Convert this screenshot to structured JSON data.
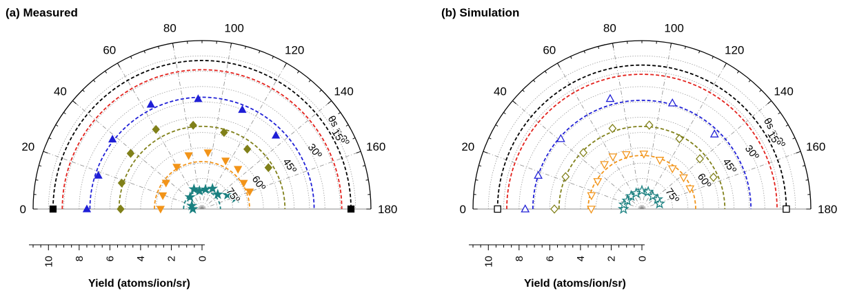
{
  "colors": {
    "black": "#000000",
    "red": "#e3211c",
    "blue": "#1f1fd6",
    "olive": "#808019",
    "orange": "#f29419",
    "teal": "#1a8080",
    "grid": "#8a8a8a",
    "gridDotted": "#9a9a9a"
  },
  "chart_data": [
    {
      "type": "polar-scatter",
      "panel_label": "(a) Measured",
      "marker_fill": "filled",
      "angle_ticks": [
        0,
        20,
        40,
        60,
        80,
        100,
        120,
        140,
        160,
        180
      ],
      "radial_axis": {
        "label": "Yield (atoms/ion/sr)",
        "ticks": [
          10,
          8,
          6,
          4,
          2,
          0
        ],
        "rlim": [
          0,
          11
        ]
      },
      "angle_labels": [
        "θs = 0º",
        "15º",
        "30º",
        "45º",
        "60º",
        "75º"
      ],
      "series": [
        {
          "name": "θs = 0º",
          "color": "black",
          "marker": "square",
          "points": [
            [
              0,
              9.7
            ],
            [
              180,
              9.7
            ]
          ],
          "curve_r": 9.7
        },
        {
          "name": "15º",
          "color": "red",
          "marker": "circle",
          "points": [
            [
              0,
              9.0
            ],
            [
              53,
              9.2
            ],
            [
              131,
              9.0
            ],
            [
              180,
              9.0
            ]
          ],
          "curve_r": 9.1
        },
        {
          "name": "30º",
          "color": "blue",
          "marker": "triangle",
          "points": [
            [
              0,
              7.5
            ],
            [
              18,
              7.1
            ],
            [
              38,
              7.4
            ],
            [
              64,
              7.6
            ],
            [
              88,
              7.2
            ],
            [
              112,
              7.0
            ],
            [
              135,
              6.8
            ]
          ],
          "curve_r": 7.3
        },
        {
          "name": "45º",
          "color": "olive",
          "marker": "diamond",
          "points": [
            [
              0,
              5.3
            ],
            [
              18,
              5.5
            ],
            [
              38,
              5.9
            ],
            [
              60,
              6.0
            ],
            [
              84,
              5.5
            ],
            [
              106,
              5.2
            ],
            [
              127,
              4.9
            ],
            [
              148,
              5.1
            ]
          ],
          "curve_r": 5.4
        },
        {
          "name": "60º",
          "color": "orange",
          "marker": "triangle-down",
          "points": [
            [
              0,
              2.7
            ],
            [
              19,
              2.7
            ],
            [
              36,
              2.9
            ],
            [
              59,
              3.2
            ],
            [
              76,
              3.6
            ],
            [
              96,
              3.7
            ],
            [
              116,
              3.5
            ],
            [
              132,
              3.5
            ],
            [
              148,
              3.2
            ],
            [
              160,
              3.3
            ]
          ],
          "curve_r": 3.1
        },
        {
          "name": "75º",
          "color": "teal",
          "marker": "star",
          "points": [
            [
              0,
              0.6
            ],
            [
              18,
              0.7
            ],
            [
              45,
              1.1
            ],
            [
              68,
              1.4
            ],
            [
              82,
              1.2
            ],
            [
              100,
              1.3
            ],
            [
              117,
              1.5
            ],
            [
              137,
              1.4
            ],
            [
              151,
              1.9
            ],
            [
              162,
              2.3
            ]
          ],
          "curve_r": 1.2
        }
      ]
    },
    {
      "type": "polar-scatter",
      "panel_label": "(b) Simulation",
      "marker_fill": "open",
      "angle_ticks": [
        0,
        20,
        40,
        60,
        80,
        100,
        120,
        140,
        160,
        180
      ],
      "radial_axis": {
        "label": "Yield (atoms/ion/sr)",
        "ticks": [
          10,
          8,
          6,
          4,
          2,
          0
        ],
        "rlim": [
          0,
          11
        ]
      },
      "angle_labels": [
        "θs = 0º",
        "15º",
        "30º",
        "45º",
        "60º",
        "75º"
      ],
      "series": [
        {
          "name": "θs = 0º",
          "color": "black",
          "marker": "square",
          "points": [
            [
              0,
              9.4
            ],
            [
              180,
              9.4
            ]
          ],
          "curve_r": 9.4
        },
        {
          "name": "15º",
          "color": "red",
          "marker": "circle",
          "points": [
            [
              0,
              9.0
            ],
            [
              55,
              8.7
            ],
            [
              129,
              8.7
            ],
            [
              180,
              8.9
            ]
          ],
          "curve_r": 8.8
        },
        {
          "name": "30º",
          "color": "blue",
          "marker": "triangle",
          "points": [
            [
              0,
              7.6
            ],
            [
              18,
              7.1
            ],
            [
              41,
              7.0
            ],
            [
              74,
              7.5
            ],
            [
              106,
              7.2
            ],
            [
              134,
              6.8
            ]
          ],
          "curve_r": 7.1
        },
        {
          "name": "45º",
          "color": "olive",
          "marker": "diamond",
          "points": [
            [
              0,
              5.7
            ],
            [
              23,
              5.4
            ],
            [
              44,
              5.3
            ],
            [
              70,
              5.6
            ],
            [
              95,
              5.5
            ],
            [
              118,
              5.2
            ],
            [
              139,
              5.0
            ],
            [
              156,
              5.1
            ]
          ],
          "curve_r": 5.4
        },
        {
          "name": "60º",
          "color": "orange",
          "marker": "triangle-down",
          "points": [
            [
              0,
              3.3
            ],
            [
              15,
              3.4
            ],
            [
              32,
              3.4
            ],
            [
              50,
              3.8
            ],
            [
              61,
              3.9
            ],
            [
              74,
              3.7
            ],
            [
              92,
              3.6
            ],
            [
              110,
              3.4
            ],
            [
              127,
              3.3
            ],
            [
              143,
              3.4
            ],
            [
              157,
              3.4
            ]
          ],
          "curve_r": 3.5
        },
        {
          "name": "75º",
          "color": "teal",
          "marker": "star",
          "points": [
            [
              0,
              1.2
            ],
            [
              14,
              1.2
            ],
            [
              30,
              1.1
            ],
            [
              50,
              1.1
            ],
            [
              70,
              1.1
            ],
            [
              90,
              1.2
            ],
            [
              110,
              1.2
            ],
            [
              130,
              1.1
            ],
            [
              148,
              1.2
            ],
            [
              163,
              1.2
            ]
          ],
          "curve_r": 1.15
        }
      ]
    }
  ]
}
